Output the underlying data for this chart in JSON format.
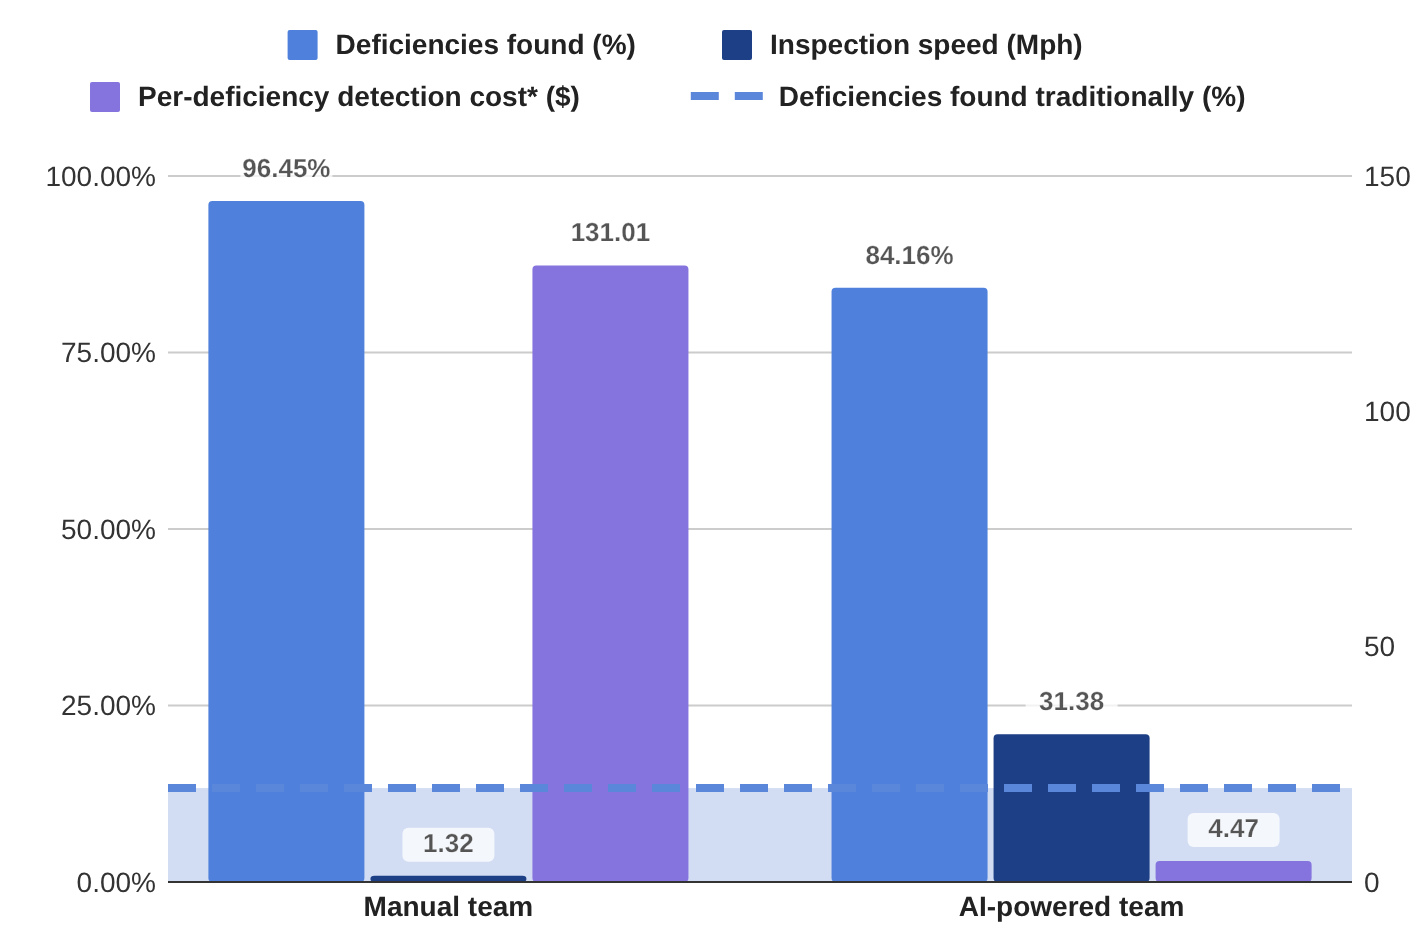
{
  "chart_data": {
    "type": "bar",
    "categories": [
      "Manual team",
      "AI-powered team"
    ],
    "series": [
      {
        "name": "Deficiencies found (%)",
        "color": "#4f81dc",
        "values": [
          96.45,
          84.16
        ],
        "value_labels": [
          "96.45%",
          "84.16%"
        ]
      },
      {
        "name": "Inspection speed (Mph)",
        "color": "#1c3f85",
        "values": [
          1.32,
          31.38
        ],
        "axis": "y2",
        "value_labels": [
          "1.32",
          "31.38"
        ]
      },
      {
        "name": "Per-deficiency detection cost* ($)",
        "color": "#8574de",
        "values": [
          131.01,
          4.47
        ],
        "axis": "y2",
        "value_labels": [
          "131.01",
          "4.47"
        ]
      }
    ],
    "ref_lines": [
      {
        "axis": "y",
        "value": 13.3,
        "label": "Deficiencies found traditionally (%)",
        "color": "#5b87db",
        "line_style": "dashed"
      }
    ],
    "bands": [
      {
        "axis": "y",
        "from": 0,
        "to": 13.3,
        "color": "#d2ddf4"
      }
    ],
    "ylim": [
      0,
      100
    ],
    "yticks": [
      {
        "value": 0,
        "label": "0.00%"
      },
      {
        "value": 25,
        "label": "25.00%"
      },
      {
        "value": 50,
        "label": "50.00%"
      },
      {
        "value": 75,
        "label": "75.00%"
      },
      {
        "value": 100,
        "label": "100.00%"
      }
    ],
    "y2lim": [
      0,
      150
    ],
    "y2ticks": [
      0,
      50,
      100,
      150
    ],
    "grid": "y",
    "legend": "top"
  }
}
